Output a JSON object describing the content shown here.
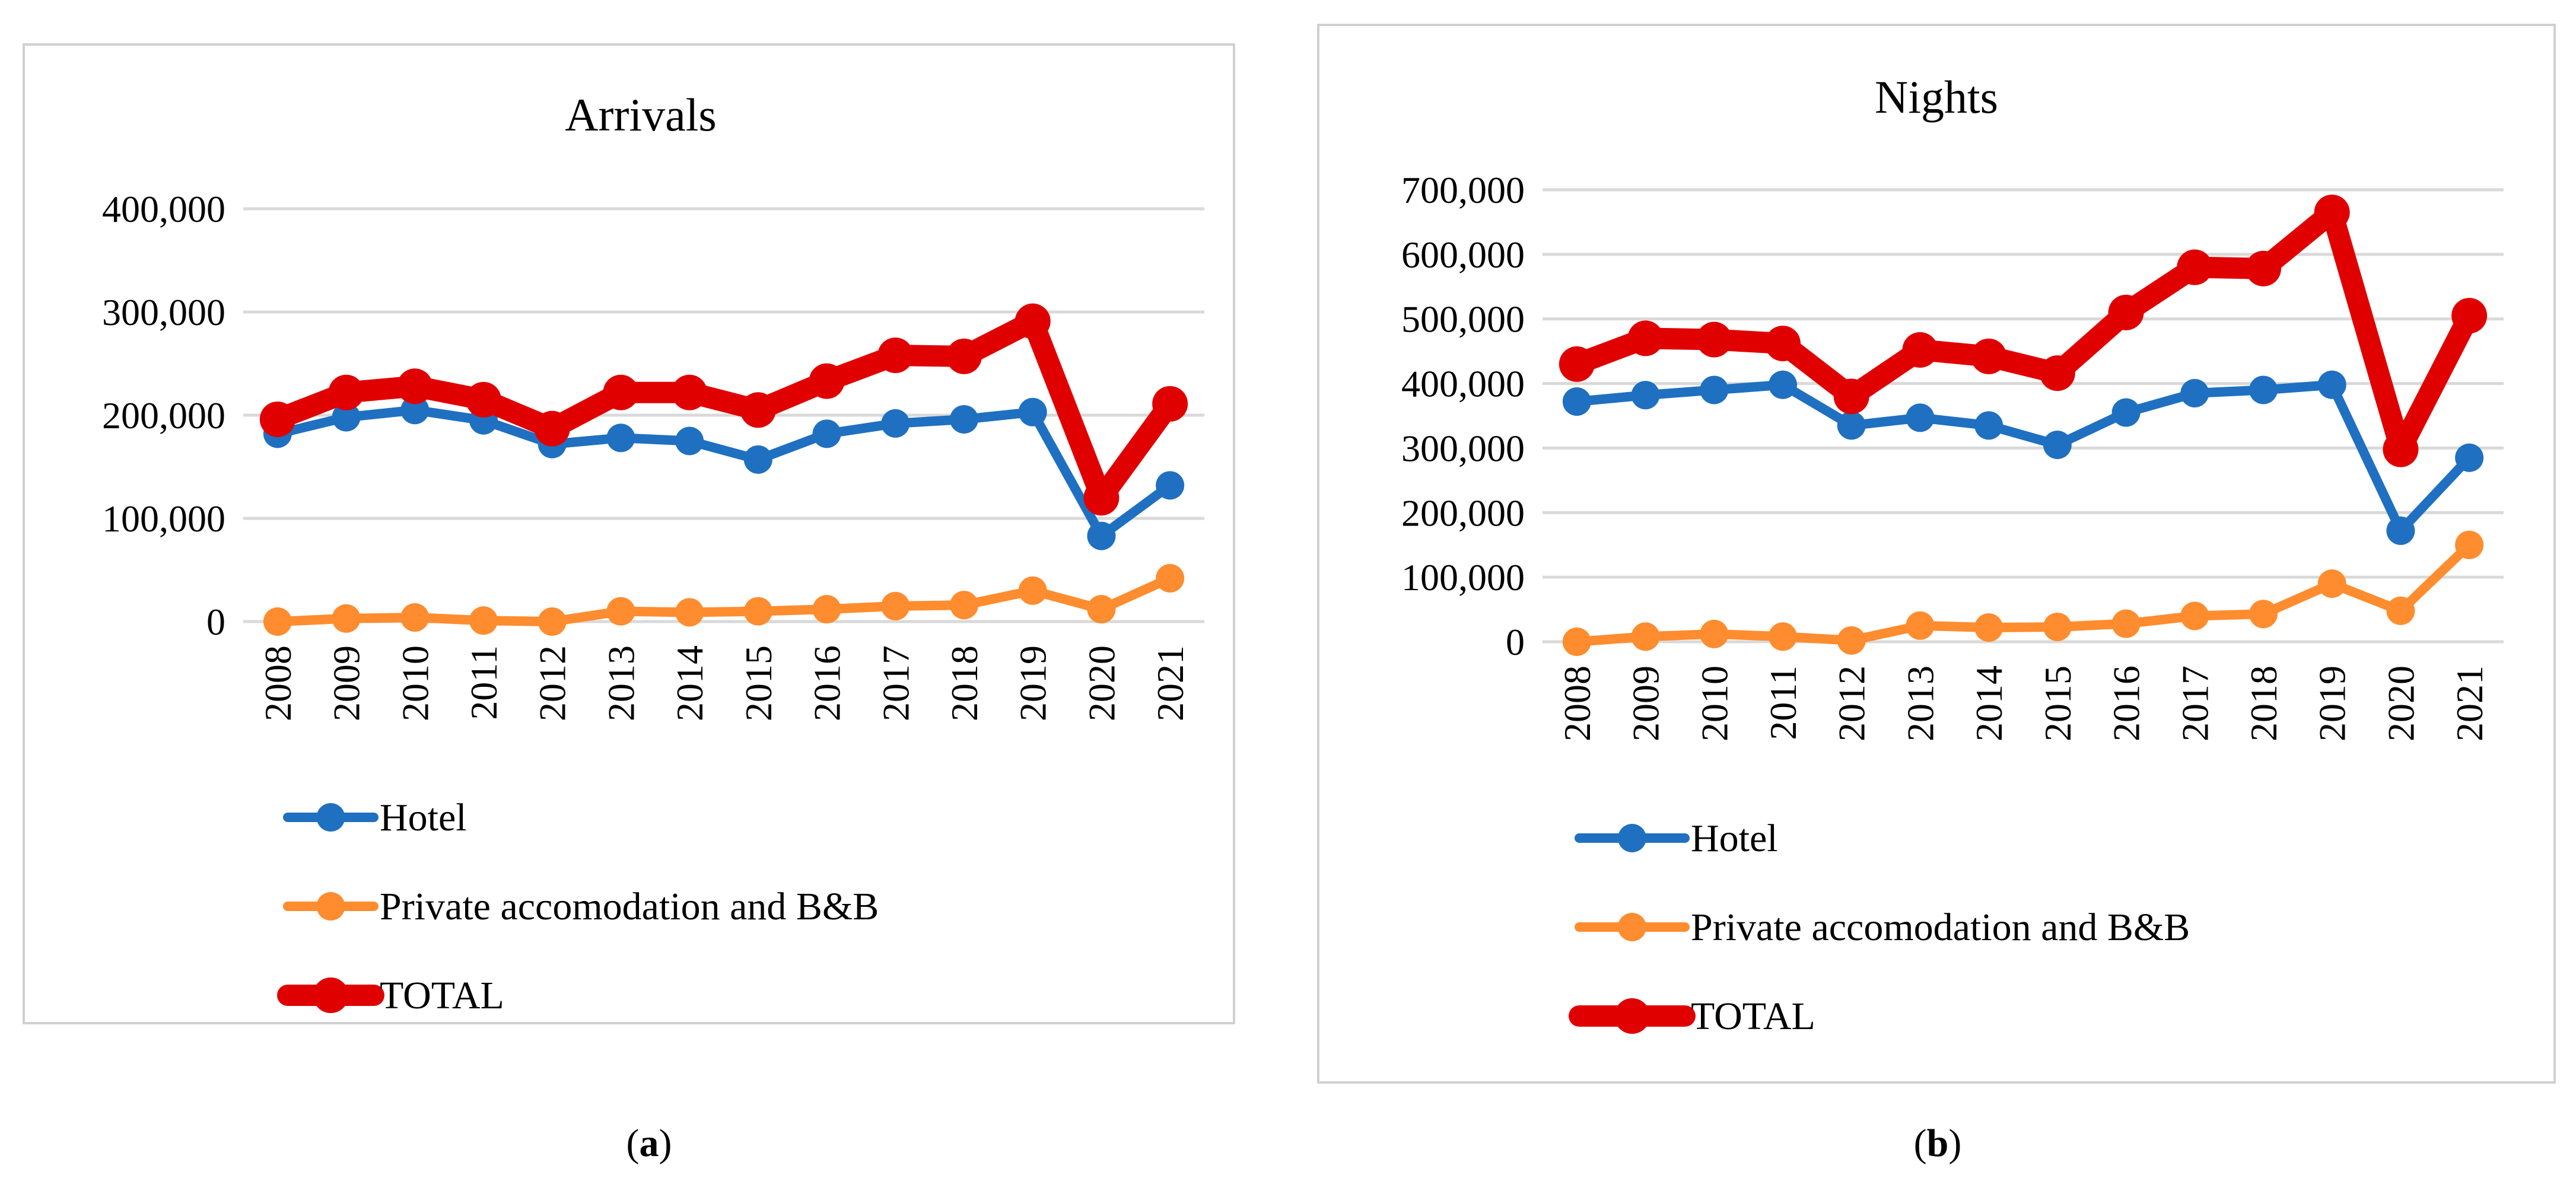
{
  "chart_data": [
    {
      "type": "line",
      "title": "Arrivals",
      "categories": [
        "2008",
        "2009",
        "2010",
        "2011",
        "2012",
        "2013",
        "2014",
        "2015",
        "2016",
        "2017",
        "2018",
        "2019",
        "2020",
        "2021"
      ],
      "ylim": [
        0,
        400000
      ],
      "yticks": [
        0,
        100000,
        200000,
        300000,
        400000
      ],
      "ytick_labels": [
        "0",
        "100,000",
        "200,000",
        "300,000",
        "400,000"
      ],
      "grid": true,
      "legend_position": "bottom",
      "caption_label": "a",
      "series": [
        {
          "name": "Hotel",
          "color": "#1f70c1",
          "values": [
            182000,
            198000,
            205000,
            195000,
            172000,
            178000,
            175000,
            157000,
            182000,
            192000,
            196000,
            203000,
            83000,
            132000
          ]
        },
        {
          "name": "Private accomodation and B&B",
          "color": "#ff8c2e",
          "values": [
            0,
            3000,
            4000,
            1000,
            0,
            10000,
            9000,
            10000,
            12000,
            15000,
            16000,
            30000,
            12000,
            42000
          ]
        },
        {
          "name": "TOTAL",
          "color": "#e00000",
          "values": [
            196000,
            222000,
            228000,
            215000,
            187000,
            222000,
            222000,
            205000,
            233000,
            258000,
            257000,
            291000,
            120000,
            211000
          ]
        }
      ]
    },
    {
      "type": "line",
      "title": "Nights",
      "categories": [
        "2008",
        "2009",
        "2010",
        "2011",
        "2012",
        "2013",
        "2014",
        "2015",
        "2016",
        "2017",
        "2018",
        "2019",
        "2020",
        "2021"
      ],
      "ylim": [
        0,
        700000
      ],
      "yticks": [
        0,
        100000,
        200000,
        300000,
        400000,
        500000,
        600000,
        700000
      ],
      "ytick_labels": [
        "0",
        "100,000",
        "200,000",
        "300,000",
        "400,000",
        "500,000",
        "600,000",
        "700,000"
      ],
      "grid": true,
      "legend_position": "bottom",
      "caption_label": "b",
      "series": [
        {
          "name": "Hotel",
          "color": "#1f70c1",
          "values": [
            372000,
            382000,
            390000,
            398000,
            335000,
            347000,
            335000,
            305000,
            355000,
            385000,
            390000,
            398000,
            172000,
            285000
          ]
        },
        {
          "name": "Private accomodation and B&B",
          "color": "#ff8c2e",
          "values": [
            0,
            8000,
            12000,
            8000,
            2000,
            25000,
            22000,
            23000,
            28000,
            40000,
            43000,
            90000,
            48000,
            150000
          ]
        },
        {
          "name": "TOTAL",
          "color": "#e00000",
          "values": [
            430000,
            470000,
            468000,
            462000,
            380000,
            452000,
            442000,
            416000,
            510000,
            580000,
            578000,
            665000,
            298000,
            505000
          ]
        }
      ]
    }
  ]
}
